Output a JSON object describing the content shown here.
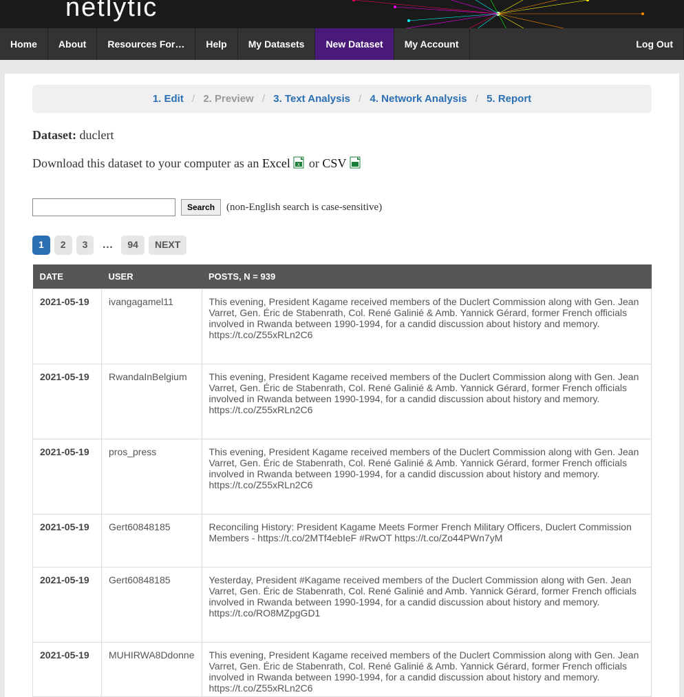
{
  "brand": "netlytic",
  "nav": {
    "items": [
      {
        "label": "Home"
      },
      {
        "label": "About"
      },
      {
        "label": "Resources For…"
      },
      {
        "label": "Help"
      },
      {
        "label": "My Datasets"
      },
      {
        "label": "New Dataset",
        "active": true
      },
      {
        "label": "My Account"
      }
    ],
    "logout": "Log Out"
  },
  "breadcrumb": {
    "s1": "1. Edit",
    "s2": "2. Preview",
    "s3": "3. Text Analysis",
    "s4": "4. Network Analysis",
    "s5": "5. Report"
  },
  "dataset": {
    "label": "Dataset:",
    "name": "duclert"
  },
  "download": {
    "prefix": "Download this dataset to your computer as an ",
    "excel": "Excel",
    "mid": " or ",
    "csv": "CSV"
  },
  "search": {
    "button": "Search",
    "hint": "(non-English search is case-sensitive)"
  },
  "pager": {
    "pages": [
      "1",
      "2",
      "3"
    ],
    "dots": "…",
    "last": "94",
    "next": "NEXT",
    "active_index": 0
  },
  "table": {
    "headers": {
      "date": "DATE",
      "user": "USER",
      "posts": "POSTS, N = 939"
    },
    "rows": [
      {
        "date": "2021-05-19",
        "user": "ivangagamel11",
        "post": "This evening, President Kagame received members of the Duclert Commission along with Gen. Jean Varret, Gen. Éric de Stabenrath, Col. René Galinié & Amb. Yannick Gérard, former French officials involved in Rwanda between 1990-1994, for a candid discussion about history and memory. https://t.co/Z55xRLn2C6"
      },
      {
        "date": "2021-05-19",
        "user": "RwandaInBelgium",
        "post": "This evening, President Kagame received members of the Duclert Commission along with Gen. Jean Varret, Gen. Éric de Stabenrath, Col. René Galinié & Amb. Yannick Gérard, former French officials involved in Rwanda between 1990-1994, for a candid discussion about history and memory. https://t.co/Z55xRLn2C6"
      },
      {
        "date": "2021-05-19",
        "user": "pros_press",
        "post": "This evening, President Kagame received members of the Duclert Commission along with Gen. Jean Varret, Gen. Éric de Stabenrath, Col. René Galinié & Amb. Yannick Gérard, former French officials involved in Rwanda between 1990-1994, for a candid discussion about history and memory. https://t.co/Z55xRLn2C6"
      },
      {
        "date": "2021-05-19",
        "user": "Gert60848185",
        "post": "Reconciling History: President Kagame Meets Former French Military Officers, Duclert Commission Members - https://t.co/2MTf4ebIeF #RwOT https://t.co/Zo44PWn7yM"
      },
      {
        "date": "2021-05-19",
        "user": "Gert60848185",
        "post": "Yesterday, President #Kagame received members of the Duclert Commission along with Gen. Jean Varret, Gen. Éric de Stabenrath, Col. René Galinié and Amb. Yannick Gérard, former French officials involved in Rwanda between 1990-1994, for a candid discussion about history and memory. https://t.co/RO8MZpgGD1"
      },
      {
        "date": "2021-05-19",
        "user": "MUHIRWA8Ddonne",
        "post": "This evening, President Kagame received members of the Duclert Commission along with Gen. Jean Varret, Gen. Éric de Stabenrath, Col. René Galinié & Amb. Yannick Gérard, former French officials involved in Rwanda between 1990-1994, for a candid discussion about history and memory. https://t.co/Z55xRLn2C6"
      }
    ]
  },
  "colors": {
    "nav_bg": "#333333",
    "nav_active": "#4a1a7a",
    "link": "#2b6fb3",
    "table_header": "#555657"
  }
}
